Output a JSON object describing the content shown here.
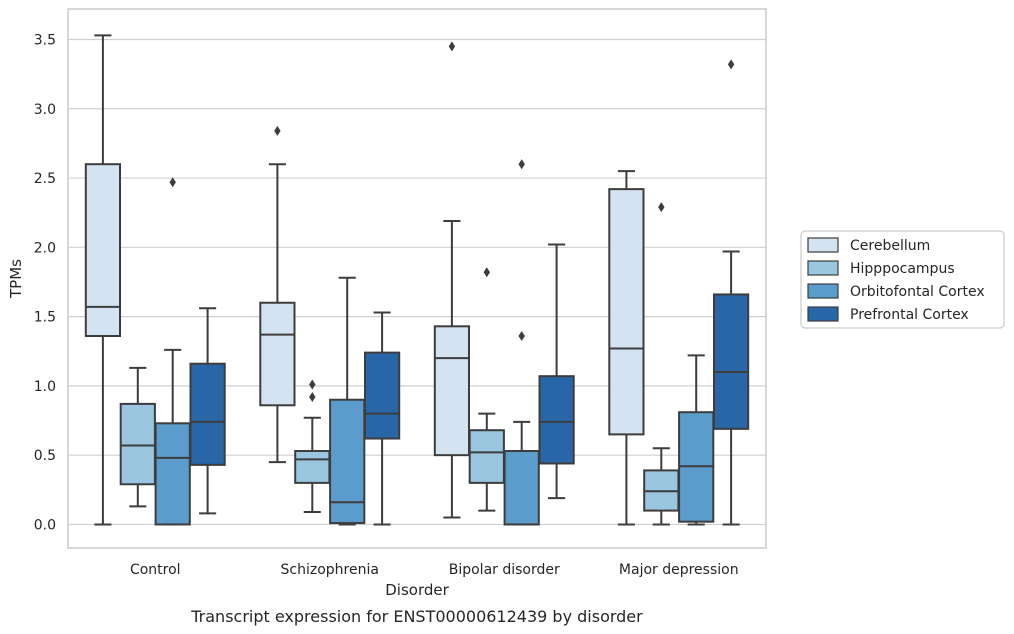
{
  "chart_data": {
    "type": "box",
    "caption": "Transcript expression for ENST00000612439 by disorder",
    "xlabel": "Disorder",
    "ylabel": "TPMs",
    "ylim": [
      -0.17,
      3.72
    ],
    "yticks": [
      0.0,
      0.5,
      1.0,
      1.5,
      2.0,
      2.5,
      3.0,
      3.5
    ],
    "ytick_labels": [
      "0.0",
      "0.5",
      "1.0",
      "1.5",
      "2.0",
      "2.5",
      "3.0",
      "3.5"
    ],
    "grid": "horizontal",
    "legend_placement": "right-center",
    "categories": [
      "Control",
      "Schizophrenia",
      "Bipolar disorder",
      "Major depression"
    ],
    "series": [
      {
        "name": "Cerebellum",
        "color": "#d4e3f2",
        "boxes": [
          {
            "whisker_low": 0.0,
            "q1": 1.36,
            "median": 1.57,
            "q3": 2.6,
            "whisker_high": 3.53,
            "outliers": []
          },
          {
            "whisker_low": 0.45,
            "q1": 0.86,
            "median": 1.37,
            "q3": 1.6,
            "whisker_high": 2.6,
            "outliers": [
              2.84
            ]
          },
          {
            "whisker_low": 0.05,
            "q1": 0.5,
            "median": 1.2,
            "q3": 1.43,
            "whisker_high": 2.19,
            "outliers": [
              3.45
            ]
          },
          {
            "whisker_low": 0.0,
            "q1": 0.65,
            "median": 1.27,
            "q3": 2.42,
            "whisker_high": 2.55,
            "outliers": []
          }
        ]
      },
      {
        "name": "Hipppocampus",
        "color": "#9ac6df",
        "boxes": [
          {
            "whisker_low": 0.13,
            "q1": 0.29,
            "median": 0.57,
            "q3": 0.87,
            "whisker_high": 1.13,
            "outliers": []
          },
          {
            "whisker_low": 0.09,
            "q1": 0.3,
            "median": 0.47,
            "q3": 0.53,
            "whisker_high": 0.77,
            "outliers": [
              0.92,
              1.01
            ]
          },
          {
            "whisker_low": 0.1,
            "q1": 0.3,
            "median": 0.52,
            "q3": 0.68,
            "whisker_high": 0.8,
            "outliers": [
              1.82
            ]
          },
          {
            "whisker_low": 0.0,
            "q1": 0.1,
            "median": 0.24,
            "q3": 0.39,
            "whisker_high": 0.55,
            "outliers": [
              2.29
            ]
          }
        ]
      },
      {
        "name": "Orbitofontal Cortex",
        "color": "#5b9ccc",
        "boxes": [
          {
            "whisker_low": 0.0,
            "q1": 0.0,
            "median": 0.48,
            "q3": 0.73,
            "whisker_high": 1.26,
            "outliers": [
              2.47
            ]
          },
          {
            "whisker_low": 0.0,
            "q1": 0.01,
            "median": 0.16,
            "q3": 0.9,
            "whisker_high": 1.78,
            "outliers": []
          },
          {
            "whisker_low": 0.0,
            "q1": 0.0,
            "median": 0.0,
            "q3": 0.53,
            "whisker_high": 0.74,
            "outliers": [
              1.36,
              2.6
            ]
          },
          {
            "whisker_low": 0.0,
            "q1": 0.02,
            "median": 0.42,
            "q3": 0.81,
            "whisker_high": 1.22,
            "outliers": []
          }
        ]
      },
      {
        "name": "Prefrontal Cortex",
        "color": "#2866a8",
        "boxes": [
          {
            "whisker_low": 0.08,
            "q1": 0.43,
            "median": 0.74,
            "q3": 1.16,
            "whisker_high": 1.56,
            "outliers": []
          },
          {
            "whisker_low": 0.0,
            "q1": 0.62,
            "median": 0.8,
            "q3": 1.24,
            "whisker_high": 1.53,
            "outliers": []
          },
          {
            "whisker_low": 0.19,
            "q1": 0.44,
            "median": 0.74,
            "q3": 1.07,
            "whisker_high": 2.02,
            "outliers": []
          },
          {
            "whisker_low": 0.0,
            "q1": 0.69,
            "median": 1.1,
            "q3": 1.66,
            "whisker_high": 1.97,
            "outliers": [
              3.32
            ]
          }
        ]
      }
    ]
  }
}
